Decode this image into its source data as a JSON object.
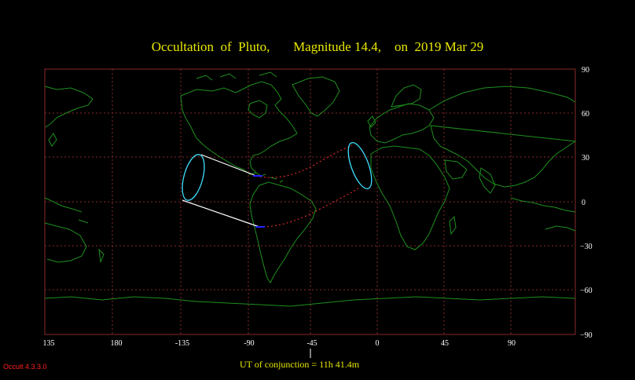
{
  "title": "Occultation  of  Pluto,       Magnitude 14.4,    on  2019 Mar 29",
  "x_ticks": [
    "135",
    "180",
    "-135",
    "-90",
    "-45",
    "0",
    "45",
    "90"
  ],
  "y_ticks": [
    "90",
    "60",
    "30",
    "0",
    "−30",
    "−60",
    "−90"
  ],
  "conjunction_label": "UT of conjunction = 11h 41.4m",
  "version": "Occult 4.3.3.0",
  "colors": {
    "background": "#000000",
    "title": "#e8e800",
    "coastline": "#1f8f1f",
    "grid": "#8a2a2a",
    "path_white": "#ffffff",
    "path_red": "#ff3030",
    "ellipse": "#40e0ff",
    "marker": "#2020ff",
    "version": "#ff2020"
  }
}
